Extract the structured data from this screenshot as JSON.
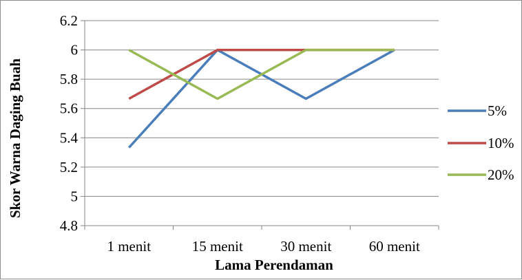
{
  "chart_data": {
    "type": "line",
    "categories": [
      "1 menit",
      "15 menit",
      "30 menit",
      "60 menit"
    ],
    "series": [
      {
        "name": "5%",
        "values": [
          5.333,
          6.0,
          5.667,
          6.0
        ],
        "color": "#4a7ebb"
      },
      {
        "name": "10%",
        "values": [
          5.667,
          6.0,
          6.0,
          6.0
        ],
        "color": "#be4b48"
      },
      {
        "name": "20%",
        "values": [
          6.0,
          5.667,
          6.0,
          6.0
        ],
        "color": "#98b954"
      }
    ],
    "xlabel": "Lama Perendaman",
    "ylabel": "Skor Warna Daging Buah",
    "ylim": [
      4.8,
      6.2
    ],
    "yticks": [
      "4.8",
      "5",
      "5.2",
      "5.4",
      "5.6",
      "5.8",
      "6",
      "6.2"
    ],
    "grid": true,
    "legend_position": "right"
  }
}
